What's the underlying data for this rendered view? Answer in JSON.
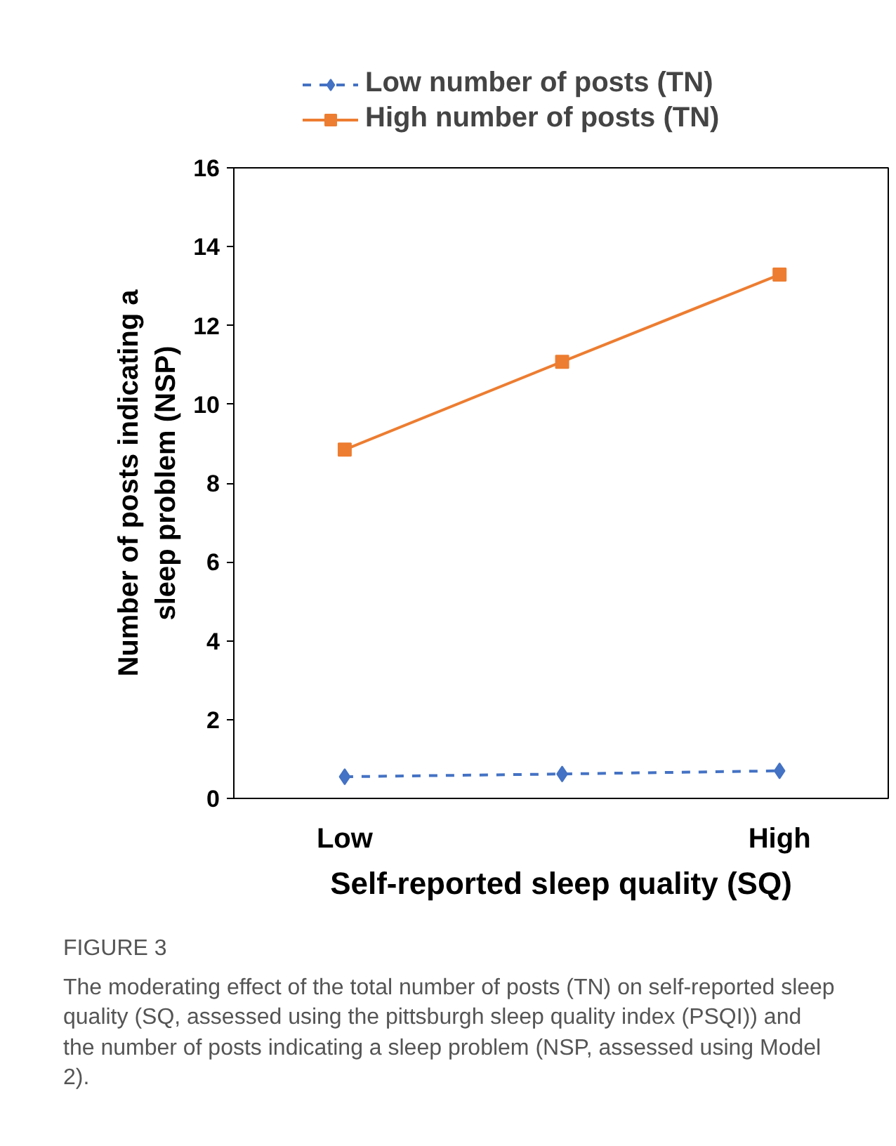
{
  "chart_data": {
    "type": "line",
    "xlabel": "Self-reported sleep quality (SQ)",
    "ylabel": "Number of posts indicating a\nsleep problem (NSP)",
    "categories": [
      "Low",
      null,
      "High"
    ],
    "ylim": [
      0,
      16
    ],
    "yticks": [
      0,
      2,
      4,
      6,
      8,
      10,
      12,
      14,
      16
    ],
    "series": [
      {
        "name": "Low number of posts (TN)",
        "color": "#4472c4",
        "values": [
          0.55,
          0.62,
          0.7
        ],
        "marker": "diamond",
        "line_style": "dashed"
      },
      {
        "name": "High number of posts (TN)",
        "color": "#ed7d31",
        "values": [
          8.85,
          11.08,
          13.29
        ],
        "marker": "square",
        "line_style": "solid"
      }
    ],
    "grid": false,
    "legend": "top",
    "annotations": [
      "FIGURE 3",
      "The moderating effect of the total number of posts (TN) on self-reported sleep quality (SQ, assessed using the pittsburgh sleep quality index (PSQI)) and the number of posts indicating a sleep problem (NSP, assessed using Model 2)."
    ]
  }
}
